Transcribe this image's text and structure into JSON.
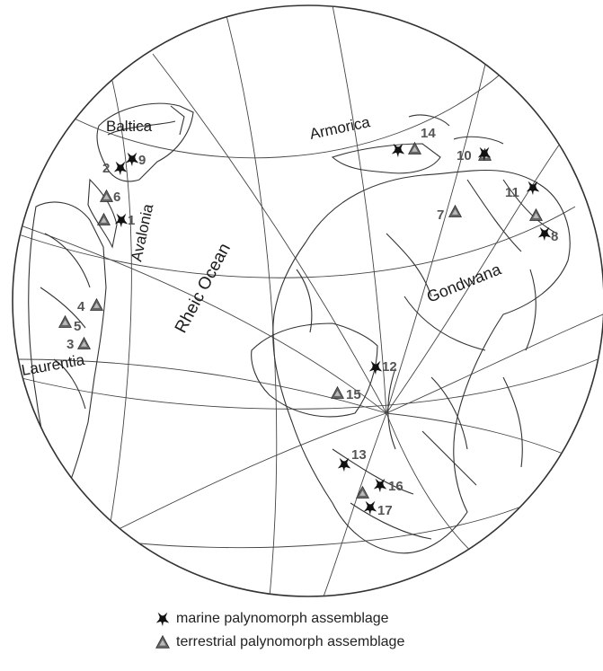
{
  "labels": {
    "baltica": "Baltica",
    "avalonia": "Avalonia",
    "rheic_ocean": "Rheic Ocean",
    "armorica": "Armorica",
    "gondwana": "Gondwana",
    "laurentia": "Laurentia"
  },
  "sites": [
    {
      "num": "1",
      "type": "both"
    },
    {
      "num": "2",
      "type": "marine"
    },
    {
      "num": "3",
      "type": "terrestrial"
    },
    {
      "num": "4",
      "type": "terrestrial"
    },
    {
      "num": "5",
      "type": "terrestrial"
    },
    {
      "num": "6",
      "type": "terrestrial"
    },
    {
      "num": "7",
      "type": "terrestrial"
    },
    {
      "num": "8",
      "type": "both"
    },
    {
      "num": "9",
      "type": "marine"
    },
    {
      "num": "10",
      "type": "both"
    },
    {
      "num": "11",
      "type": "marine"
    },
    {
      "num": "12",
      "type": "marine"
    },
    {
      "num": "13",
      "type": "marine"
    },
    {
      "num": "14",
      "type": "both"
    },
    {
      "num": "15",
      "type": "terrestrial"
    },
    {
      "num": "16",
      "type": "both"
    },
    {
      "num": "17",
      "type": "marine"
    }
  ],
  "legend": {
    "marine": "marine palynomorph assemblage",
    "terrestrial": "terrestrial palynomorph assemblage"
  },
  "colors": {
    "marine_symbol": "#111111",
    "terrestrial_symbol": "#666666",
    "outline": "#333333"
  }
}
